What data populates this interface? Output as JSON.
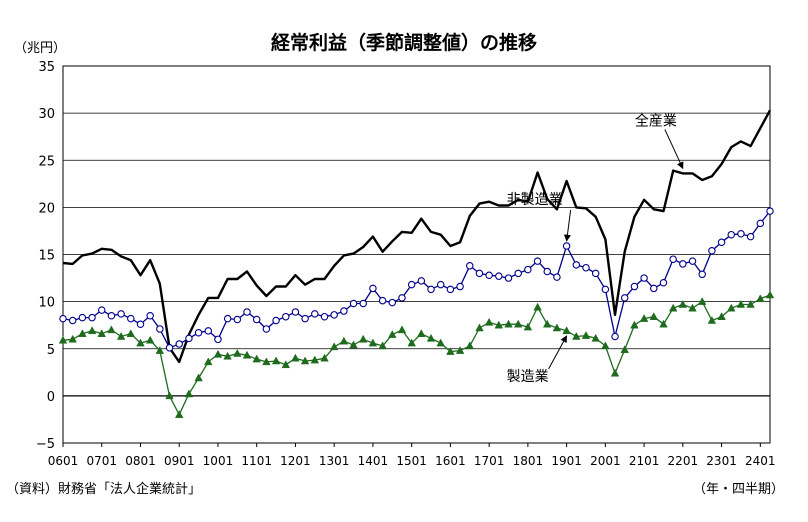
{
  "chart_data": {
    "type": "line",
    "title": "経常利益（季節調整値）の推移",
    "y_unit": "（兆円）",
    "source": "（資料）財務省「法人企業統計」",
    "x_unit": "（年・四半期）",
    "ylim": [
      -5,
      35
    ],
    "yticks": [
      "35",
      "30",
      "25",
      "20",
      "15",
      "10",
      "5",
      "0",
      "−5"
    ],
    "grid": true,
    "legend": "inline-labels",
    "x": [
      "0601",
      "0602",
      "0603",
      "0604",
      "0701",
      "0702",
      "0703",
      "0704",
      "0801",
      "0802",
      "0803",
      "0804",
      "0901",
      "0902",
      "0903",
      "0904",
      "1001",
      "1002",
      "1003",
      "1004",
      "1101",
      "1102",
      "1103",
      "1104",
      "1201",
      "1202",
      "1203",
      "1204",
      "1301",
      "1302",
      "1303",
      "1304",
      "1401",
      "1402",
      "1403",
      "1404",
      "1501",
      "1502",
      "1503",
      "1504",
      "1601",
      "1602",
      "1603",
      "1604",
      "1701",
      "1702",
      "1703",
      "1704",
      "1801",
      "1802",
      "1803",
      "1804",
      "1901",
      "1902",
      "1903",
      "1904",
      "2001",
      "2002",
      "2003",
      "2004",
      "2101",
      "2102",
      "2103",
      "2104",
      "2201",
      "2202",
      "2203",
      "2204",
      "2301",
      "2302",
      "2303",
      "2304",
      "2401",
      "2402"
    ],
    "x_tick_labels": [
      "0601",
      "0701",
      "0801",
      "0901",
      "1001",
      "1101",
      "1201",
      "1301",
      "1401",
      "1501",
      "1601",
      "1701",
      "1801",
      "1901",
      "2001",
      "2101",
      "2201",
      "2301",
      "2401"
    ],
    "series": [
      {
        "name": "全産業",
        "color": "#000000",
        "marker": "none",
        "values": [
          14.1,
          14.0,
          14.9,
          15.1,
          15.6,
          15.5,
          14.8,
          14.4,
          12.8,
          14.4,
          11.9,
          5.1,
          3.6,
          6.5,
          8.6,
          10.4,
          10.4,
          12.4,
          12.4,
          13.2,
          11.7,
          10.6,
          11.6,
          11.6,
          12.8,
          11.8,
          12.4,
          12.4,
          13.8,
          14.9,
          15.1,
          15.8,
          16.9,
          15.3,
          16.4,
          17.4,
          17.3,
          18.8,
          17.4,
          17.1,
          15.9,
          16.3,
          19.1,
          20.4,
          20.6,
          20.2,
          20.2,
          20.8,
          20.6,
          23.7,
          20.9,
          19.8,
          22.8,
          20.0,
          19.9,
          19.0,
          16.6,
          8.6,
          15.3,
          19.0,
          20.8,
          19.8,
          19.6,
          23.9,
          23.6,
          23.6,
          22.9,
          23.3,
          24.6,
          26.4,
          27.0,
          26.5,
          28.4,
          30.3
        ]
      },
      {
        "name": "非製造業",
        "color": "#00008b",
        "marker": "open-circle",
        "values": [
          8.2,
          8.0,
          8.3,
          8.3,
          9.1,
          8.5,
          8.7,
          8.2,
          7.6,
          8.5,
          7.1,
          5.1,
          5.5,
          6.1,
          6.7,
          6.9,
          6.0,
          8.2,
          8.1,
          8.9,
          8.1,
          7.1,
          8.0,
          8.4,
          8.9,
          8.2,
          8.7,
          8.4,
          8.6,
          9.0,
          9.8,
          9.8,
          11.4,
          10.1,
          9.9,
          10.4,
          11.8,
          12.2,
          11.3,
          11.8,
          11.3,
          11.6,
          13.8,
          13.0,
          12.8,
          12.7,
          12.5,
          13.0,
          13.4,
          14.3,
          13.2,
          12.6,
          15.9,
          13.9,
          13.6,
          13.0,
          11.3,
          6.3,
          10.4,
          11.6,
          12.5,
          11.4,
          12.0,
          14.5,
          14.0,
          14.3,
          12.9,
          15.4,
          16.3,
          17.1,
          17.2,
          16.9,
          18.3,
          19.6
        ]
      },
      {
        "name": "製造業",
        "color": "#1e6b1e",
        "marker": "filled-triangle",
        "values": [
          5.9,
          6.0,
          6.6,
          6.9,
          6.6,
          7.0,
          6.3,
          6.6,
          5.6,
          5.9,
          4.8,
          0.0,
          -2.0,
          0.2,
          1.9,
          3.6,
          4.4,
          4.2,
          4.5,
          4.3,
          3.9,
          3.6,
          3.7,
          3.3,
          4.0,
          3.7,
          3.8,
          4.0,
          5.2,
          5.8,
          5.4,
          6.0,
          5.6,
          5.3,
          6.5,
          7.0,
          5.6,
          6.6,
          6.1,
          5.6,
          4.7,
          4.8,
          5.3,
          7.2,
          7.8,
          7.5,
          7.6,
          7.6,
          7.3,
          9.4,
          7.6,
          7.2,
          6.9,
          6.3,
          6.4,
          6.1,
          5.3,
          2.4,
          4.9,
          7.5,
          8.2,
          8.4,
          7.6,
          9.3,
          9.7,
          9.3,
          10.0,
          8.0,
          8.4,
          9.3,
          9.7,
          9.7,
          10.3,
          10.7
        ]
      }
    ],
    "annotations": [
      {
        "text": "全産業",
        "series": 0,
        "point": 64
      },
      {
        "text": "非製造業",
        "series": 1,
        "point": 52
      },
      {
        "text": "製造業",
        "series": 2,
        "point": 52
      }
    ]
  }
}
